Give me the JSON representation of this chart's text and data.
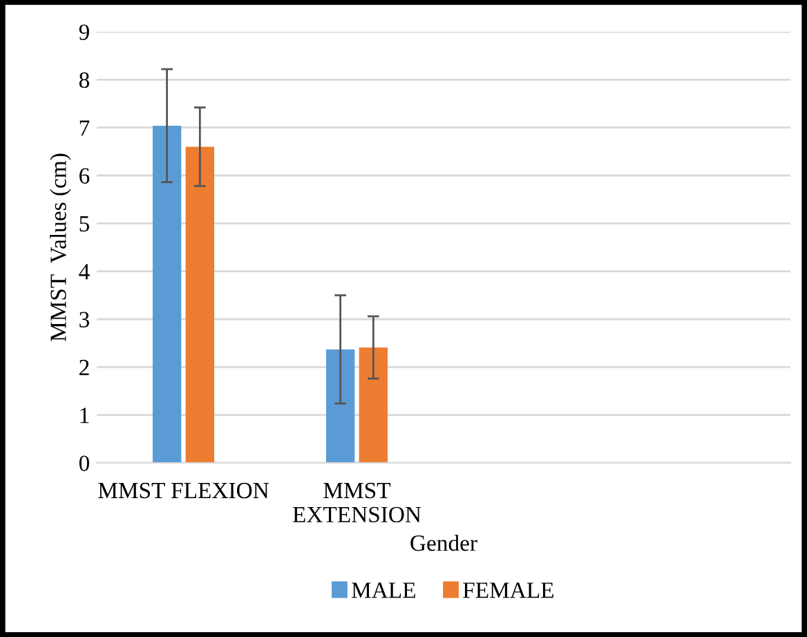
{
  "chart_data": {
    "type": "bar",
    "ylabel": "MMST  Values (cm)",
    "xlabel": "Gender",
    "categories": [
      "MMST FLEXION",
      "MMST\nEXTENSION",
      null,
      null
    ],
    "series": [
      {
        "name": "MALE",
        "color": "#5b9bd5",
        "values": [
          7.04,
          2.37,
          null,
          null
        ],
        "errors": [
          1.18,
          1.13,
          null,
          null
        ]
      },
      {
        "name": "FEMALE",
        "color": "#ed7d31",
        "values": [
          6.6,
          2.41,
          null,
          null
        ],
        "errors": [
          0.82,
          0.65,
          null,
          null
        ]
      }
    ],
    "ylim": [
      0,
      9
    ],
    "yticks": [
      0,
      1,
      2,
      3,
      4,
      5,
      6,
      7,
      8,
      9
    ],
    "grid": "y",
    "legend": "bottom"
  }
}
